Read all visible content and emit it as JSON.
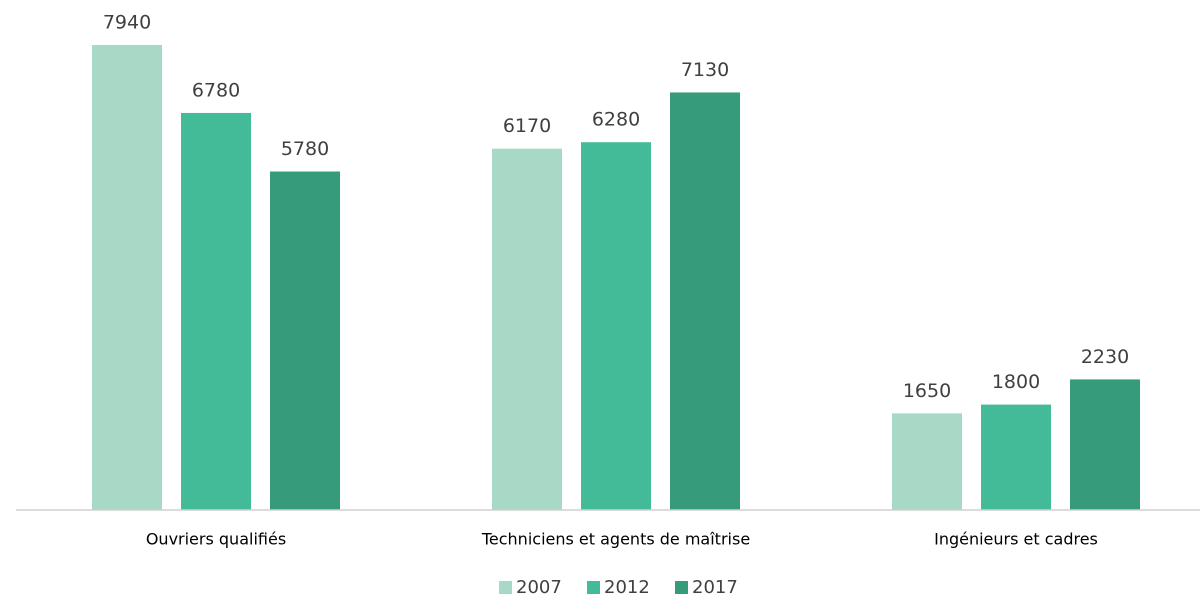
{
  "chart_data": {
    "type": "bar",
    "categories": [
      "Ouvriers qualifiés",
      "Techniciens et agents de maîtrise",
      "Ingénieurs et cadres"
    ],
    "series": [
      {
        "name": "2007",
        "color": "#a8d8c6",
        "values": [
          7940,
          6170,
          1650
        ]
      },
      {
        "name": "2012",
        "color": "#43bb98",
        "values": [
          6780,
          6280,
          1800
        ]
      },
      {
        "name": "2017",
        "color": "#359b7b",
        "values": [
          5780,
          7130,
          2230
        ]
      }
    ],
    "ylim": [
      0,
      8000
    ],
    "legend": "bottom"
  }
}
